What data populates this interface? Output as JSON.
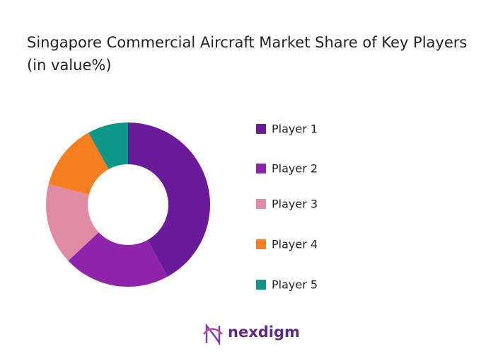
{
  "chart_data": {
    "type": "donut",
    "title": "Singapore Commercial Aircraft Market Share of Key Players (in value%)",
    "categories": [
      "Player 1",
      "Player 2",
      "Player 3",
      "Player 4",
      "Player 5"
    ],
    "values": [
      42,
      21,
      16,
      13,
      8
    ],
    "colors": [
      "#6a1b9a",
      "#8e24aa",
      "#e08ba3",
      "#f57f20",
      "#0f968b"
    ]
  },
  "logo": "nexdigm"
}
